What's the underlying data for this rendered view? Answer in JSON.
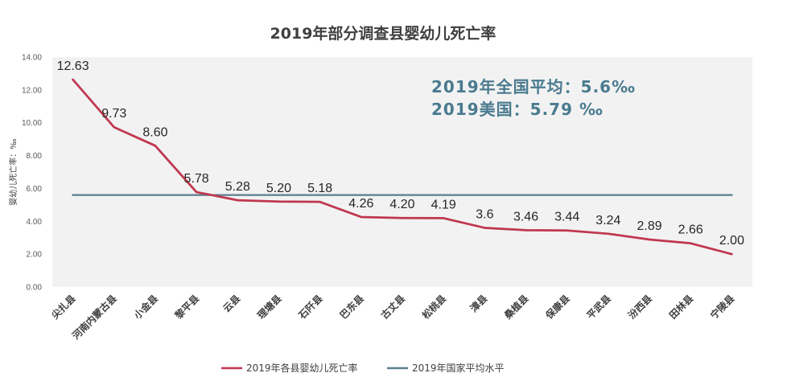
{
  "chart_data": {
    "type": "line",
    "title": "2019年部分调查县婴幼儿死亡率",
    "ylabel": "婴幼儿死亡率：‰",
    "xlabel": "",
    "ylim": [
      0,
      14
    ],
    "yticks": [
      "0.00",
      "2.00",
      "4.00",
      "6.00",
      "8.00",
      "10.00",
      "12.00",
      "14.00"
    ],
    "categories": [
      "尖扎县",
      "河南内蒙古县",
      "小金县",
      "黎平县",
      "云县",
      "理塘县",
      "石阡县",
      "巴东县",
      "古丈县",
      "松桃县",
      "漳县",
      "桑植县",
      "保康县",
      "平武县",
      "汾西县",
      "田林县",
      "宁陵县"
    ],
    "series": [
      {
        "name": "2019年各县婴幼儿死亡率",
        "color": "#c0374f",
        "values": [
          12.63,
          9.73,
          8.6,
          5.78,
          5.28,
          5.2,
          5.18,
          4.26,
          4.2,
          4.19,
          3.6,
          3.46,
          3.44,
          3.24,
          2.89,
          2.66,
          2.0
        ],
        "labels": [
          "12.63",
          "9.73",
          "8.60",
          "5.78",
          "5.28",
          "5.20",
          "5.18",
          "4.26",
          "4.20",
          "4.19",
          "3.6",
          "3.46",
          "3.44",
          "3.24",
          "2.89",
          "2.66",
          "2.00"
        ]
      },
      {
        "name": "2019年国家平均水平",
        "color": "#5b7f8e",
        "values": [
          5.6,
          5.6,
          5.6,
          5.6,
          5.6,
          5.6,
          5.6,
          5.6,
          5.6,
          5.6,
          5.6,
          5.6,
          5.6,
          5.6,
          5.6,
          5.6,
          5.6
        ]
      }
    ],
    "annotations": [
      "2019年全国平均：5.6‰",
      "2019美国：5.79 ‰"
    ],
    "grid": false,
    "legend_position": "bottom"
  }
}
